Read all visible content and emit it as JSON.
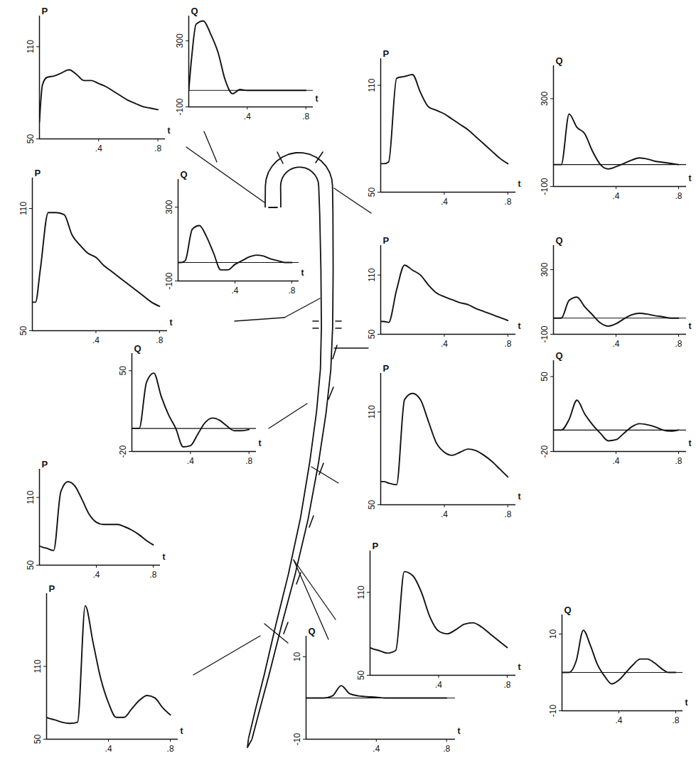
{
  "chart_data": [
    {
      "type": "line",
      "ylabel": "P",
      "xlabel": "t",
      "color": "#111111",
      "x": [
        0,
        0.02,
        0.05,
        0.1,
        0.15,
        0.2,
        0.25,
        0.3,
        0.35,
        0.4,
        0.45,
        0.5,
        0.55,
        0.6,
        0.65,
        0.7,
        0.75,
        0.8
      ],
      "values": [
        61,
        85,
        90,
        91,
        93,
        95,
        92,
        88,
        88,
        86,
        84,
        81,
        78,
        75,
        73,
        71,
        70,
        69
      ],
      "xlim": [
        0,
        0.85
      ],
      "xticks": [
        {
          "value": 0.4,
          "label": ".4"
        },
        {
          "value": 0.8,
          "label": ".8"
        }
      ],
      "ylim": [
        50,
        130
      ],
      "yticks": [
        50,
        110
      ]
    },
    {
      "type": "line",
      "ylabel": "Q",
      "xlabel": "t",
      "color": "#111111",
      "x": [
        0,
        0.02,
        0.05,
        0.1,
        0.15,
        0.2,
        0.25,
        0.3,
        0.35,
        0.4,
        0.45,
        0.5,
        0.55,
        0.6,
        0.65,
        0.7,
        0.75,
        0.8
      ],
      "values": [
        0,
        200,
        400,
        420,
        340,
        230,
        60,
        -20,
        5,
        0,
        0,
        0,
        0,
        0,
        0,
        0,
        0,
        0
      ],
      "xlim": [
        0,
        0.85
      ],
      "xticks": [
        {
          "value": 0.4,
          "label": ".4"
        },
        {
          "value": 0.8,
          "label": ".8"
        }
      ],
      "ylim": [
        -100,
        450
      ],
      "yticks": [
        -100,
        300
      ]
    },
    {
      "type": "line",
      "ylabel": "P",
      "xlabel": "t",
      "color": "#111111",
      "x": [
        0,
        0.02,
        0.05,
        0.1,
        0.15,
        0.2,
        0.25,
        0.3,
        0.35,
        0.4,
        0.45,
        0.5,
        0.55,
        0.6,
        0.65,
        0.7,
        0.75,
        0.8
      ],
      "values": [
        66,
        66,
        67,
        114,
        115,
        116,
        106,
        98,
        96,
        94,
        91,
        88,
        85,
        81,
        77,
        73,
        69,
        66
      ],
      "xlim": [
        0,
        0.85
      ],
      "xticks": [
        {
          "value": 0.4,
          "label": ".4"
        },
        {
          "value": 0.8,
          "label": ".8"
        }
      ],
      "ylim": [
        50,
        125
      ],
      "yticks": [
        50,
        110
      ]
    },
    {
      "type": "line",
      "ylabel": "Q",
      "xlabel": "t",
      "color": "#111111",
      "x": [
        0,
        0.02,
        0.05,
        0.1,
        0.15,
        0.2,
        0.25,
        0.3,
        0.35,
        0.4,
        0.45,
        0.5,
        0.55,
        0.6,
        0.65,
        0.7,
        0.75,
        0.8
      ],
      "values": [
        0,
        0,
        0,
        230,
        170,
        140,
        60,
        0,
        -20,
        -10,
        5,
        20,
        30,
        25,
        15,
        10,
        5,
        0
      ],
      "xlim": [
        0,
        0.85
      ],
      "xticks": [
        {
          "value": 0.4,
          "label": ".4"
        },
        {
          "value": 0.8,
          "label": ".8"
        }
      ],
      "ylim": [
        -100,
        450
      ],
      "yticks": [
        -100,
        300
      ]
    },
    {
      "type": "line",
      "ylabel": "P",
      "xlabel": "t",
      "color": "#111111",
      "x": [
        0,
        0.02,
        0.05,
        0.1,
        0.15,
        0.2,
        0.25,
        0.3,
        0.35,
        0.4,
        0.45,
        0.5,
        0.55,
        0.6,
        0.65,
        0.7,
        0.75,
        0.8
      ],
      "values": [
        64,
        64,
        80,
        108,
        108,
        107,
        97,
        92,
        88,
        86,
        82,
        79,
        76,
        73,
        70,
        67,
        64,
        62
      ],
      "xlim": [
        0,
        0.85
      ],
      "xticks": [
        {
          "value": 0.4,
          "label": ".4"
        },
        {
          "value": 0.8,
          "label": ".8"
        }
      ],
      "ylim": [
        50,
        125
      ],
      "yticks": [
        50,
        110
      ]
    },
    {
      "type": "line",
      "ylabel": "Q",
      "xlabel": "t",
      "color": "#111111",
      "x": [
        0,
        0.02,
        0.05,
        0.1,
        0.15,
        0.2,
        0.25,
        0.3,
        0.35,
        0.4,
        0.45,
        0.5,
        0.55,
        0.6,
        0.65,
        0.7,
        0.75,
        0.8
      ],
      "values": [
        0,
        0,
        10,
        180,
        200,
        140,
        50,
        -40,
        -40,
        -10,
        10,
        30,
        40,
        35,
        20,
        10,
        0,
        0
      ],
      "xlim": [
        0,
        0.85
      ],
      "xticks": [
        {
          "value": 0.4,
          "label": ".4"
        },
        {
          "value": 0.8,
          "label": ".8"
        }
      ],
      "ylim": [
        -100,
        450
      ],
      "yticks": [
        -100,
        300
      ]
    },
    {
      "type": "line",
      "ylabel": "P",
      "xlabel": "t",
      "color": "#111111",
      "x": [
        0,
        0.02,
        0.05,
        0.1,
        0.15,
        0.2,
        0.25,
        0.3,
        0.35,
        0.4,
        0.45,
        0.5,
        0.55,
        0.6,
        0.65,
        0.7,
        0.75,
        0.8
      ],
      "values": [
        63,
        63,
        62,
        95,
        120,
        115,
        110,
        100,
        92,
        88,
        85,
        82,
        80,
        76,
        73,
        70,
        67,
        64
      ],
      "xlim": [
        0,
        0.85
      ],
      "xticks": [
        {
          "value": 0.4,
          "label": ".4"
        },
        {
          "value": 0.8,
          "label": ".8"
        }
      ],
      "ylim": [
        50,
        140
      ],
      "yticks": [
        50,
        110
      ]
    },
    {
      "type": "line",
      "ylabel": "Q",
      "xlabel": "t",
      "color": "#111111",
      "x": [
        0,
        0.02,
        0.05,
        0.1,
        0.15,
        0.2,
        0.25,
        0.3,
        0.35,
        0.4,
        0.45,
        0.5,
        0.55,
        0.6,
        0.65,
        0.7,
        0.75,
        0.8
      ],
      "values": [
        0,
        0,
        0,
        110,
        130,
        70,
        20,
        -30,
        -50,
        -35,
        -5,
        20,
        30,
        25,
        15,
        8,
        0,
        0
      ],
      "xlim": [
        0,
        0.85
      ],
      "xticks": [
        {
          "value": 0.4,
          "label": ".4"
        },
        {
          "value": 0.8,
          "label": ".8"
        }
      ],
      "ylim": [
        -100,
        450
      ],
      "yticks": [
        -100,
        300
      ]
    },
    {
      "type": "line",
      "ylabel": "Q",
      "xlabel": "t",
      "color": "#111111",
      "x": [
        0,
        0.02,
        0.05,
        0.1,
        0.15,
        0.2,
        0.25,
        0.3,
        0.35,
        0.4,
        0.45,
        0.5,
        0.55,
        0.6,
        0.65,
        0.7,
        0.75,
        0.8
      ],
      "values": [
        0,
        0,
        0,
        40,
        48,
        28,
        12,
        0,
        -16,
        -15,
        -5,
        5,
        9,
        7,
        2,
        -2,
        -2,
        -1
      ],
      "xlim": [
        0,
        0.85
      ],
      "xticks": [
        {
          "value": 0.4,
          "label": ".4"
        },
        {
          "value": 0.8,
          "label": ".8"
        }
      ],
      "ylim": [
        -20,
        65
      ],
      "yticks": [
        -20,
        50
      ]
    },
    {
      "type": "line",
      "ylabel": "P",
      "xlabel": "t",
      "color": "#111111",
      "x": [
        0,
        0.02,
        0.05,
        0.1,
        0.15,
        0.2,
        0.25,
        0.3,
        0.35,
        0.4,
        0.45,
        0.5,
        0.55,
        0.6,
        0.65,
        0.7,
        0.75,
        0.8
      ],
      "values": [
        65,
        65,
        64,
        63,
        118,
        122,
        118,
        104,
        90,
        84,
        82,
        84,
        86,
        85,
        82,
        78,
        73,
        68
      ],
      "xlim": [
        0,
        0.85
      ],
      "xticks": [
        {
          "value": 0.4,
          "label": ".4"
        },
        {
          "value": 0.8,
          "label": ".8"
        }
      ],
      "ylim": [
        50,
        135
      ],
      "yticks": [
        50,
        110
      ]
    },
    {
      "type": "line",
      "ylabel": "Q",
      "xlabel": "t",
      "color": "#111111",
      "x": [
        0,
        0.02,
        0.05,
        0.1,
        0.15,
        0.2,
        0.25,
        0.3,
        0.35,
        0.4,
        0.45,
        0.5,
        0.55,
        0.6,
        0.65,
        0.7,
        0.75,
        0.8
      ],
      "values": [
        0,
        0,
        0,
        10,
        28,
        15,
        5,
        -3,
        -10,
        -9,
        -3,
        3,
        6,
        5,
        3,
        0,
        -1,
        0
      ],
      "xlim": [
        0,
        0.85
      ],
      "xticks": [
        {
          "value": 0.4,
          "label": ".4"
        },
        {
          "value": 0.8,
          "label": ".8"
        }
      ],
      "ylim": [
        -20,
        65
      ],
      "yticks": [
        -20,
        50
      ]
    },
    {
      "type": "line",
      "ylabel": "P",
      "xlabel": "t",
      "color": "#111111",
      "x": [
        0,
        0.02,
        0.05,
        0.1,
        0.15,
        0.2,
        0.25,
        0.3,
        0.35,
        0.4,
        0.45,
        0.5,
        0.55,
        0.6,
        0.65,
        0.7,
        0.75,
        0.8
      ],
      "values": [
        67,
        66,
        65,
        63,
        115,
        124,
        120,
        108,
        95,
        88,
        86,
        86,
        86,
        84,
        81,
        77,
        72,
        68
      ],
      "xlim": [
        0,
        0.85
      ],
      "xticks": [
        {
          "value": 0.4,
          "label": ".4"
        },
        {
          "value": 0.8,
          "label": ".8"
        }
      ],
      "ylim": [
        50,
        135
      ],
      "yticks": [
        50,
        110
      ]
    },
    {
      "type": "line",
      "ylabel": "P",
      "xlabel": "t",
      "color": "#111111",
      "x": [
        0,
        0.02,
        0.05,
        0.1,
        0.15,
        0.2,
        0.25,
        0.3,
        0.35,
        0.4,
        0.45,
        0.5,
        0.55,
        0.6,
        0.65,
        0.7,
        0.75,
        0.8
      ],
      "values": [
        70,
        69,
        68,
        66,
        68,
        125,
        122,
        110,
        92,
        82,
        80,
        83,
        87,
        88,
        85,
        80,
        75,
        70
      ],
      "xlim": [
        0,
        0.85
      ],
      "xticks": [
        {
          "value": 0.4,
          "label": ".4"
        },
        {
          "value": 0.8,
          "label": ".8"
        }
      ],
      "ylim": [
        50,
        140
      ],
      "yticks": [
        50,
        110
      ]
    },
    {
      "type": "line",
      "ylabel": "P",
      "xlabel": "t",
      "color": "#111111",
      "x": [
        0,
        0.02,
        0.05,
        0.1,
        0.15,
        0.2,
        0.25,
        0.3,
        0.35,
        0.4,
        0.45,
        0.5,
        0.55,
        0.6,
        0.65,
        0.7,
        0.75,
        0.8
      ],
      "values": [
        68,
        67,
        66,
        64,
        63,
        64,
        160,
        130,
        100,
        80,
        68,
        68,
        75,
        82,
        86,
        84,
        76,
        70
      ],
      "xlim": [
        0,
        0.85
      ],
      "xticks": [
        {
          "value": 0.4,
          "label": ".4"
        },
        {
          "value": 0.8,
          "label": ".8"
        }
      ],
      "ylim": [
        50,
        170
      ],
      "yticks": [
        50,
        110
      ]
    },
    {
      "type": "line",
      "ylabel": "Q",
      "xlabel": "t",
      "color": "#111111",
      "x": [
        0,
        0.02,
        0.05,
        0.1,
        0.15,
        0.2,
        0.25,
        0.3,
        0.35,
        0.4,
        0.45,
        0.5,
        0.55,
        0.6,
        0.65,
        0.7,
        0.75,
        0.8
      ],
      "values": [
        0,
        0,
        0,
        0,
        0.5,
        3,
        1,
        0.5,
        0.3,
        0.2,
        0,
        0,
        0,
        0,
        0,
        0,
        0,
        0
      ],
      "xlim": [
        0,
        0.85
      ],
      "xticks": [
        {
          "value": 0.4,
          "label": ".4"
        },
        {
          "value": 0.8,
          "label": ".8"
        }
      ],
      "ylim": [
        -10,
        15
      ],
      "yticks": [
        -10,
        10
      ]
    },
    {
      "type": "line",
      "ylabel": "Q",
      "xlabel": "t",
      "color": "#111111",
      "x": [
        0,
        0.02,
        0.05,
        0.1,
        0.15,
        0.2,
        0.25,
        0.3,
        0.35,
        0.4,
        0.45,
        0.5,
        0.55,
        0.6,
        0.65,
        0.7,
        0.75,
        0.8
      ],
      "values": [
        0,
        0,
        0,
        3,
        11,
        7,
        2,
        -1,
        -3,
        -2,
        0,
        2,
        3.5,
        3.5,
        2.5,
        1,
        0,
        0
      ],
      "xlim": [
        0,
        0.85
      ],
      "xticks": [
        {
          "value": 0.4,
          "label": ".4"
        },
        {
          "value": 0.8,
          "label": ".8"
        }
      ],
      "ylim": [
        -10,
        15
      ],
      "yticks": [
        -10,
        10
      ]
    }
  ]
}
